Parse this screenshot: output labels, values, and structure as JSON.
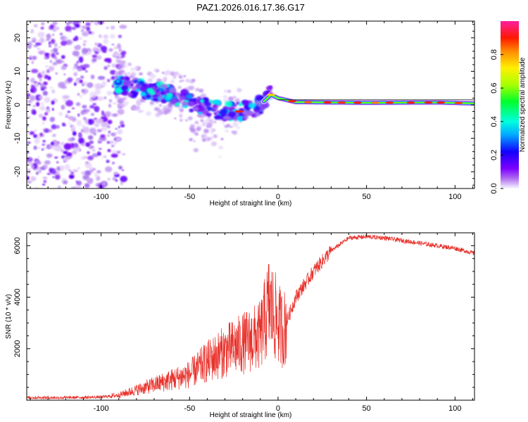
{
  "title": "PAZ1.2026.016.17.36.G17",
  "chart_data": [
    {
      "type": "heatmap",
      "name": "spectrogram",
      "xlabel": "Height of straight line (km)",
      "ylabel": "Frequency (Hz)",
      "xlim": [
        -142,
        111
      ],
      "ylim": [
        -25,
        25
      ],
      "x_ticks": [
        -100,
        -50,
        0,
        50,
        100
      ],
      "y_ticks": [
        -20,
        -10,
        0,
        10,
        20
      ],
      "colorbar": {
        "label": "Normalized spectral amplitude",
        "range": [
          0.0,
          1.0
        ],
        "ticks": [
          "0.0",
          "0.2",
          "0.4",
          "0.6",
          "0.8"
        ]
      },
      "ridge": [
        {
          "x": -90,
          "y": 6
        },
        {
          "x": -80,
          "y": 5
        },
        {
          "x": -70,
          "y": 4
        },
        {
          "x": -60,
          "y": 3
        },
        {
          "x": -50,
          "y": 1
        },
        {
          "x": -40,
          "y": -1
        },
        {
          "x": -30,
          "y": -2
        },
        {
          "x": -20,
          "y": -2
        },
        {
          "x": -10,
          "y": 0
        },
        {
          "x": -4,
          "y": 3
        },
        {
          "x": 0,
          "y": 2
        },
        {
          "x": 10,
          "y": 0.8
        },
        {
          "x": 50,
          "y": 0.6
        },
        {
          "x": 90,
          "y": 0.7
        },
        {
          "x": 111,
          "y": 0.4
        }
      ]
    },
    {
      "type": "line",
      "name": "snr",
      "xlabel": "Height of straight line (km)",
      "ylabel": "SNR (10 * v/v)",
      "xlim": [
        -142,
        111
      ],
      "ylim": [
        0,
        6500
      ],
      "x_ticks": [
        -100,
        -50,
        0,
        50,
        100
      ],
      "y_ticks": [
        2000,
        4000,
        6000
      ],
      "color": "#e8302a",
      "series": [
        {
          "name": "SNR",
          "x": [
            -142,
            -120,
            -100,
            -90,
            -80,
            -70,
            -60,
            -50,
            -40,
            -30,
            -20,
            -10,
            -5,
            0,
            3,
            10,
            20,
            30,
            40,
            50,
            60,
            70,
            80,
            90,
            100,
            111
          ],
          "y": [
            100,
            100,
            120,
            200,
            400,
            600,
            800,
            1000,
            1500,
            1900,
            2200,
            2500,
            3700,
            3000,
            2700,
            4000,
            5000,
            5800,
            6300,
            6350,
            6300,
            6200,
            6100,
            6000,
            5900,
            5700
          ]
        }
      ]
    }
  ]
}
